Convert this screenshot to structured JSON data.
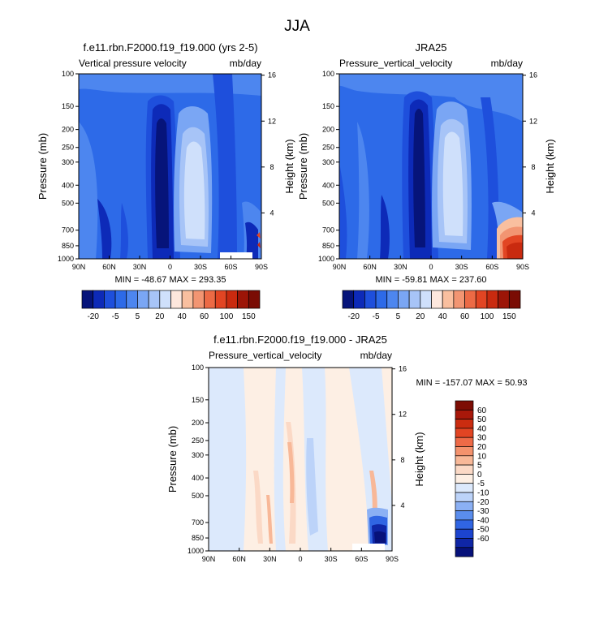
{
  "figure_title": "JJA",
  "chart_data": [
    {
      "type": "heatmap",
      "panel": "left",
      "title": "f.e11.rbn.F2000.f19_f19.000 (yrs 2-5)",
      "left_label": "Vertical pressure velocity",
      "right_label": "mb/day",
      "ylabel": "Pressure (mb)",
      "ylabel_right": "Height (km)",
      "x_ticks": [
        "90N",
        "60N",
        "30N",
        "0",
        "30S",
        "60S",
        "90S"
      ],
      "y_ticks": [
        "100",
        "150",
        "200",
        "250",
        "300",
        "400",
        "500",
        "700",
        "850",
        "1000"
      ],
      "y_ticks_right": [
        "16",
        "12",
        "8",
        "4"
      ],
      "xlim": [
        90,
        -90
      ],
      "ylim": [
        1000,
        100
      ],
      "min_max_text": "MIN = -48.67   MAX = 293.35",
      "colorbar": {
        "labels": [
          "-20",
          "-5",
          "5",
          "20",
          "40",
          "60",
          "100",
          "150"
        ],
        "colors": [
          "#06147a",
          "#0d2ab8",
          "#1e4fdc",
          "#2d6ae8",
          "#4d86ef",
          "#7aa6f4",
          "#a7c4f7",
          "#cfe0fb",
          "#fde7dd",
          "#f9bf9f",
          "#f29572",
          "#ec6a45",
          "#e24523",
          "#c92a0f",
          "#9c1507",
          "#7a0c04"
        ]
      }
    },
    {
      "type": "heatmap",
      "panel": "right",
      "title": "JRA25",
      "left_label": "Pressure_vertical_velocity",
      "right_label": "mb/day",
      "ylabel": "Pressure (mb)",
      "ylabel_right": "Height (km)",
      "x_ticks": [
        "90N",
        "60N",
        "30N",
        "0",
        "30S",
        "60S",
        "90S"
      ],
      "y_ticks": [
        "100",
        "150",
        "200",
        "250",
        "300",
        "400",
        "500",
        "700",
        "850",
        "1000"
      ],
      "y_ticks_right": [
        "16",
        "12",
        "8",
        "4"
      ],
      "xlim": [
        90,
        -90
      ],
      "ylim": [
        1000,
        100
      ],
      "min_max_text": "MIN = -59.81   MAX = 237.60",
      "colorbar": {
        "labels": [
          "-20",
          "-5",
          "5",
          "20",
          "40",
          "60",
          "100",
          "150"
        ],
        "colors": [
          "#06147a",
          "#0d2ab8",
          "#1e4fdc",
          "#2d6ae8",
          "#4d86ef",
          "#7aa6f4",
          "#a7c4f7",
          "#cfe0fb",
          "#fde7dd",
          "#f9bf9f",
          "#f29572",
          "#ec6a45",
          "#e24523",
          "#c92a0f",
          "#9c1507",
          "#7a0c04"
        ]
      }
    },
    {
      "type": "heatmap",
      "panel": "difference",
      "title": "f.e11.rbn.F2000.f19_f19.000 - JRA25",
      "left_label": "Pressure_vertical_velocity",
      "right_label": "mb/day",
      "ylabel": "Pressure (mb)",
      "ylabel_right": "Height (km)",
      "x_ticks": [
        "90N",
        "60N",
        "30N",
        "0",
        "30S",
        "60S",
        "90S"
      ],
      "y_ticks": [
        "100",
        "150",
        "200",
        "250",
        "300",
        "400",
        "500",
        "700",
        "850",
        "1000"
      ],
      "y_ticks_right": [
        "16",
        "12",
        "8",
        "4"
      ],
      "xlim": [
        90,
        -90
      ],
      "ylim": [
        1000,
        100
      ],
      "min_max_text": "MIN = -157.07   MAX =  50.93",
      "colorbar": {
        "labels": [
          "60",
          "50",
          "40",
          "30",
          "20",
          "10",
          "5",
          "0",
          "-5",
          "-10",
          "-20",
          "-30",
          "-40",
          "-50",
          "-60"
        ],
        "colors": [
          "#7d0d04",
          "#a8180a",
          "#cb2c10",
          "#e24523",
          "#ee6a47",
          "#f4926d",
          "#f8b898",
          "#fbd9c6",
          "#fdefe4",
          "#dce9fc",
          "#bcd3f9",
          "#8bb0f4",
          "#5a8ded",
          "#3065e3",
          "#1c44cf",
          "#0f26a6",
          "#06117a"
        ]
      }
    }
  ]
}
